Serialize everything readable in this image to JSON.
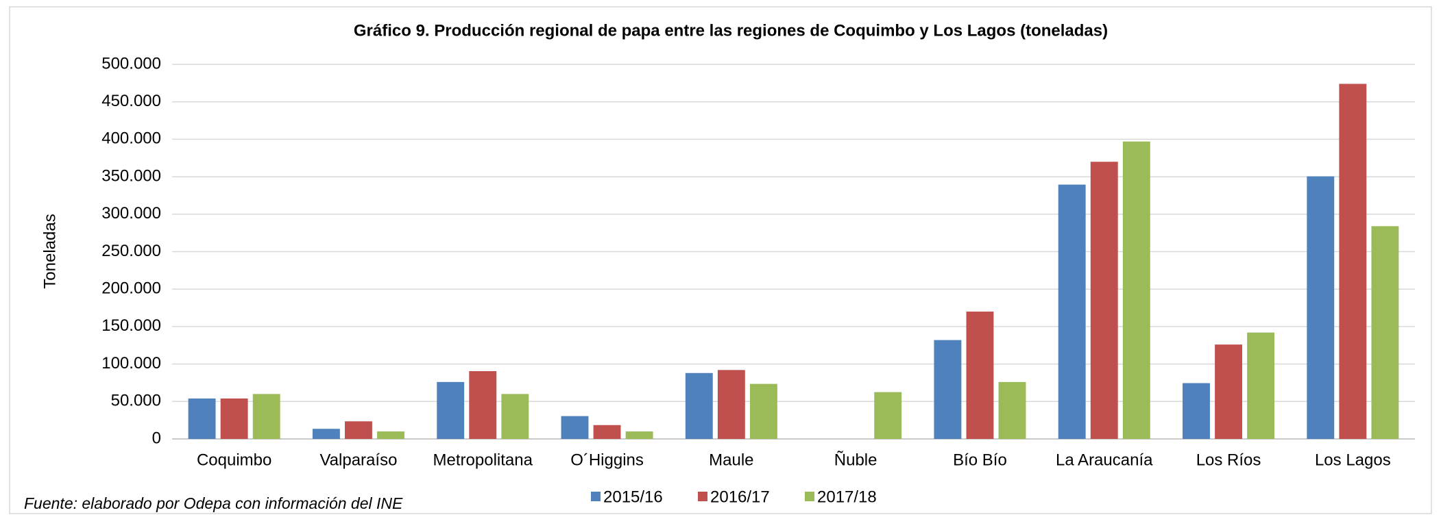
{
  "chart_data": {
    "type": "bar",
    "title": "Gráfico 9. Producción regional de papa entre las regiones de Coquimbo y Los Lagos (toneladas)",
    "y_label": "Toneladas",
    "source": "Fuente: elaborado por Odepa con información del INE",
    "categories": [
      "Coquimbo",
      "Valparaíso",
      "Metropolitana",
      "O´Higgins",
      "Maule",
      "Ñuble",
      "Bío Bío",
      "La Araucanía",
      "Los Ríos",
      "Los Lagos"
    ],
    "series": [
      {
        "name": "2015/16",
        "color": "#4f81bd",
        "values": [
          54000,
          13500,
          76000,
          30500,
          88000,
          null,
          132000,
          339500,
          74500,
          350500
        ]
      },
      {
        "name": "2016/17",
        "color": "#c0504d",
        "values": [
          54000,
          23500,
          90500,
          18500,
          92000,
          null,
          170000,
          370000,
          126000,
          474000
        ]
      },
      {
        "name": "2017/18",
        "color": "#9bbb59",
        "values": [
          60000,
          10000,
          60000,
          10000,
          73500,
          62500,
          76000,
          397000,
          142000,
          284000
        ]
      }
    ],
    "ylim": [
      0,
      500000
    ],
    "yticks": [
      0,
      {
        "value": 50000,
        "label": "50.000"
      },
      {
        "value": 100000,
        "label": "100.000"
      },
      {
        "value": 150000,
        "label": "150.000"
      },
      {
        "value": 200000,
        "label": "200.000"
      },
      {
        "value": 250000,
        "label": "250.000"
      },
      {
        "value": 300000,
        "label": "300.000"
      },
      {
        "value": 350000,
        "label": "350.000"
      },
      {
        "value": 400000,
        "label": "400.000"
      },
      {
        "value": 450000,
        "label": "450.000"
      },
      {
        "value": 500000,
        "label": "500.000"
      }
    ],
    "grid": true,
    "legend": "bottom"
  }
}
